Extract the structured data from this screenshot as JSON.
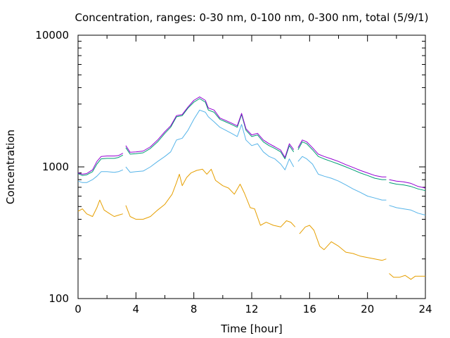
{
  "chart_data": {
    "type": "line",
    "title": "Concentration, ranges: 0-30 nm, 0-100 nm, 0-300 nm, total (5/9/1)",
    "xlabel": "Time [hour]",
    "ylabel": "Concentration",
    "xlim": [
      0,
      24
    ],
    "ylim": [
      100,
      10000
    ],
    "y_scale": "log",
    "x_ticks": [
      "0",
      "4",
      "8",
      "12",
      "16",
      "20",
      "24"
    ],
    "y_ticks": [
      "100",
      "1000",
      "10000"
    ],
    "grid": false,
    "legend": "none",
    "series": [
      {
        "color": "#e69f00",
        "segments": [
          [
            [
              0,
              460
            ],
            [
              0.3,
              480
            ],
            [
              0.6,
              440
            ],
            [
              1.0,
              420
            ],
            [
              1.3,
              490
            ],
            [
              1.5,
              560
            ],
            [
              1.8,
              470
            ],
            [
              2.2,
              440
            ],
            [
              2.5,
              420
            ],
            [
              2.8,
              430
            ],
            [
              3.1,
              440
            ]
          ],
          [
            [
              3.3,
              510
            ],
            [
              3.6,
              420
            ],
            [
              4.0,
              400
            ],
            [
              4.5,
              400
            ],
            [
              5.0,
              420
            ],
            [
              5.5,
              470
            ],
            [
              6.0,
              520
            ],
            [
              6.5,
              620
            ],
            [
              6.8,
              760
            ],
            [
              7.0,
              880
            ],
            [
              7.2,
              720
            ],
            [
              7.5,
              830
            ],
            [
              7.8,
              900
            ],
            [
              8.2,
              940
            ],
            [
              8.6,
              960
            ],
            [
              8.9,
              880
            ],
            [
              9.2,
              960
            ],
            [
              9.5,
              790
            ],
            [
              10.0,
              720
            ],
            [
              10.4,
              690
            ],
            [
              10.8,
              620
            ],
            [
              11.2,
              740
            ],
            [
              11.5,
              630
            ],
            [
              11.9,
              490
            ],
            [
              12.2,
              480
            ],
            [
              12.6,
              360
            ],
            [
              13.0,
              380
            ],
            [
              13.5,
              360
            ],
            [
              14.0,
              350
            ],
            [
              14.4,
              390
            ],
            [
              14.7,
              380
            ],
            [
              15.0,
              350
            ]
          ],
          [
            [
              15.3,
              310
            ],
            [
              15.7,
              350
            ],
            [
              16.0,
              360
            ],
            [
              16.3,
              330
            ],
            [
              16.7,
              250
            ],
            [
              17.0,
              235
            ],
            [
              17.5,
              270
            ],
            [
              18.0,
              250
            ],
            [
              18.5,
              225
            ],
            [
              19.0,
              220
            ],
            [
              19.5,
              210
            ],
            [
              20.0,
              205
            ],
            [
              20.5,
              200
            ],
            [
              21.0,
              195
            ],
            [
              21.3,
              200
            ]
          ],
          [
            [
              21.5,
              155
            ],
            [
              21.8,
              145
            ],
            [
              22.2,
              145
            ],
            [
              22.6,
              150
            ],
            [
              23.0,
              140
            ],
            [
              23.3,
              148
            ],
            [
              23.7,
              148
            ],
            [
              24.0,
              148
            ]
          ]
        ]
      },
      {
        "color": "#56b4e9",
        "segments": [
          [
            [
              0,
              780
            ],
            [
              0.3,
              760
            ],
            [
              0.6,
              760
            ],
            [
              1.0,
              800
            ],
            [
              1.3,
              850
            ],
            [
              1.6,
              920
            ],
            [
              2.0,
              920
            ],
            [
              2.5,
              910
            ],
            [
              2.8,
              920
            ],
            [
              3.1,
              950
            ]
          ],
          [
            [
              3.3,
              1000
            ],
            [
              3.6,
              910
            ],
            [
              4.0,
              920
            ],
            [
              4.5,
              930
            ],
            [
              5.0,
              1000
            ],
            [
              5.5,
              1100
            ],
            [
              6.0,
              1200
            ],
            [
              6.4,
              1300
            ],
            [
              6.8,
              1600
            ],
            [
              7.2,
              1650
            ],
            [
              7.6,
              1900
            ],
            [
              8.0,
              2300
            ],
            [
              8.4,
              2700
            ],
            [
              8.8,
              2600
            ],
            [
              9.0,
              2400
            ],
            [
              9.4,
              2200
            ],
            [
              9.8,
              2000
            ],
            [
              10.2,
              1900
            ],
            [
              10.6,
              1800
            ],
            [
              11.0,
              1700
            ],
            [
              11.3,
              2100
            ],
            [
              11.6,
              1600
            ],
            [
              12.0,
              1450
            ],
            [
              12.4,
              1500
            ],
            [
              12.8,
              1300
            ],
            [
              13.2,
              1200
            ],
            [
              13.6,
              1150
            ],
            [
              14.0,
              1050
            ],
            [
              14.3,
              950
            ],
            [
              14.6,
              1150
            ],
            [
              14.9,
              1000
            ]
          ],
          [
            [
              15.2,
              1100
            ],
            [
              15.5,
              1200
            ],
            [
              15.8,
              1150
            ],
            [
              16.2,
              1050
            ],
            [
              16.6,
              880
            ],
            [
              17.0,
              850
            ],
            [
              17.5,
              820
            ],
            [
              18.0,
              780
            ],
            [
              18.5,
              730
            ],
            [
              19.0,
              680
            ],
            [
              19.5,
              640
            ],
            [
              20.0,
              600
            ],
            [
              20.5,
              580
            ],
            [
              21.0,
              560
            ],
            [
              21.3,
              560
            ]
          ],
          [
            [
              21.5,
              510
            ],
            [
              22.0,
              490
            ],
            [
              22.5,
              480
            ],
            [
              23.0,
              470
            ],
            [
              23.5,
              445
            ],
            [
              24.0,
              430
            ]
          ]
        ]
      },
      {
        "color": "#009e73",
        "segments": [
          [
            [
              0,
              890
            ],
            [
              0.3,
              860
            ],
            [
              0.6,
              870
            ],
            [
              1.0,
              920
            ],
            [
              1.3,
              1050
            ],
            [
              1.6,
              1150
            ],
            [
              2.0,
              1160
            ],
            [
              2.5,
              1160
            ],
            [
              2.8,
              1180
            ],
            [
              3.1,
              1230
            ]
          ],
          [
            [
              3.3,
              1400
            ],
            [
              3.6,
              1250
            ],
            [
              4.0,
              1260
            ],
            [
              4.5,
              1280
            ],
            [
              5.0,
              1380
            ],
            [
              5.5,
              1550
            ],
            [
              6.0,
              1800
            ],
            [
              6.4,
              2000
            ],
            [
              6.8,
              2400
            ],
            [
              7.2,
              2450
            ],
            [
              7.6,
              2800
            ],
            [
              8.0,
              3100
            ],
            [
              8.4,
              3300
            ],
            [
              8.8,
              3100
            ],
            [
              9.0,
              2700
            ],
            [
              9.4,
              2600
            ],
            [
              9.8,
              2300
            ],
            [
              10.2,
              2200
            ],
            [
              10.6,
              2100
            ],
            [
              11.0,
              2000
            ],
            [
              11.3,
              2500
            ],
            [
              11.6,
              1900
            ],
            [
              12.0,
              1700
            ],
            [
              12.4,
              1750
            ],
            [
              12.8,
              1550
            ],
            [
              13.2,
              1450
            ],
            [
              13.6,
              1380
            ],
            [
              14.0,
              1300
            ],
            [
              14.3,
              1150
            ],
            [
              14.6,
              1450
            ],
            [
              14.9,
              1300
            ]
          ],
          [
            [
              15.2,
              1350
            ],
            [
              15.5,
              1550
            ],
            [
              15.8,
              1500
            ],
            [
              16.2,
              1350
            ],
            [
              16.6,
              1200
            ],
            [
              17.0,
              1150
            ],
            [
              17.5,
              1100
            ],
            [
              18.0,
              1050
            ],
            [
              18.5,
              1000
            ],
            [
              19.0,
              950
            ],
            [
              19.5,
              900
            ],
            [
              20.0,
              860
            ],
            [
              20.5,
              820
            ],
            [
              21.0,
              800
            ],
            [
              21.3,
              800
            ]
          ],
          [
            [
              21.5,
              760
            ],
            [
              22.0,
              740
            ],
            [
              22.5,
              730
            ],
            [
              23.0,
              710
            ],
            [
              23.5,
              680
            ],
            [
              24.0,
              660
            ]
          ]
        ]
      },
      {
        "color": "#9400d3",
        "segments": [
          [
            [
              0,
              900
            ],
            [
              0.3,
              880
            ],
            [
              0.6,
              890
            ],
            [
              1.0,
              950
            ],
            [
              1.3,
              1100
            ],
            [
              1.6,
              1200
            ],
            [
              2.0,
              1210
            ],
            [
              2.5,
              1210
            ],
            [
              2.8,
              1220
            ],
            [
              3.1,
              1270
            ]
          ],
          [
            [
              3.3,
              1450
            ],
            [
              3.6,
              1290
            ],
            [
              4.0,
              1300
            ],
            [
              4.5,
              1320
            ],
            [
              5.0,
              1420
            ],
            [
              5.5,
              1600
            ],
            [
              6.0,
              1850
            ],
            [
              6.4,
              2050
            ],
            [
              6.8,
              2450
            ],
            [
              7.2,
              2500
            ],
            [
              7.6,
              2850
            ],
            [
              8.0,
              3200
            ],
            [
              8.4,
              3400
            ],
            [
              8.8,
              3200
            ],
            [
              9.0,
              2800
            ],
            [
              9.4,
              2700
            ],
            [
              9.8,
              2350
            ],
            [
              10.2,
              2250
            ],
            [
              10.6,
              2150
            ],
            [
              11.0,
              2050
            ],
            [
              11.3,
              2550
            ],
            [
              11.6,
              1950
            ],
            [
              12.0,
              1750
            ],
            [
              12.4,
              1800
            ],
            [
              12.8,
              1600
            ],
            [
              13.2,
              1500
            ],
            [
              13.6,
              1420
            ],
            [
              14.0,
              1340
            ],
            [
              14.3,
              1180
            ],
            [
              14.6,
              1500
            ],
            [
              14.9,
              1350
            ]
          ],
          [
            [
              15.2,
              1400
            ],
            [
              15.5,
              1600
            ],
            [
              15.8,
              1550
            ],
            [
              16.2,
              1400
            ],
            [
              16.6,
              1250
            ],
            [
              17.0,
              1200
            ],
            [
              17.5,
              1150
            ],
            [
              18.0,
              1100
            ],
            [
              18.5,
              1040
            ],
            [
              19.0,
              990
            ],
            [
              19.5,
              940
            ],
            [
              20.0,
              900
            ],
            [
              20.5,
              860
            ],
            [
              21.0,
              840
            ],
            [
              21.3,
              840
            ]
          ],
          [
            [
              21.5,
              800
            ],
            [
              22.0,
              780
            ],
            [
              22.5,
              770
            ],
            [
              23.0,
              750
            ],
            [
              23.5,
              710
            ],
            [
              24.0,
              690
            ]
          ]
        ]
      }
    ]
  }
}
